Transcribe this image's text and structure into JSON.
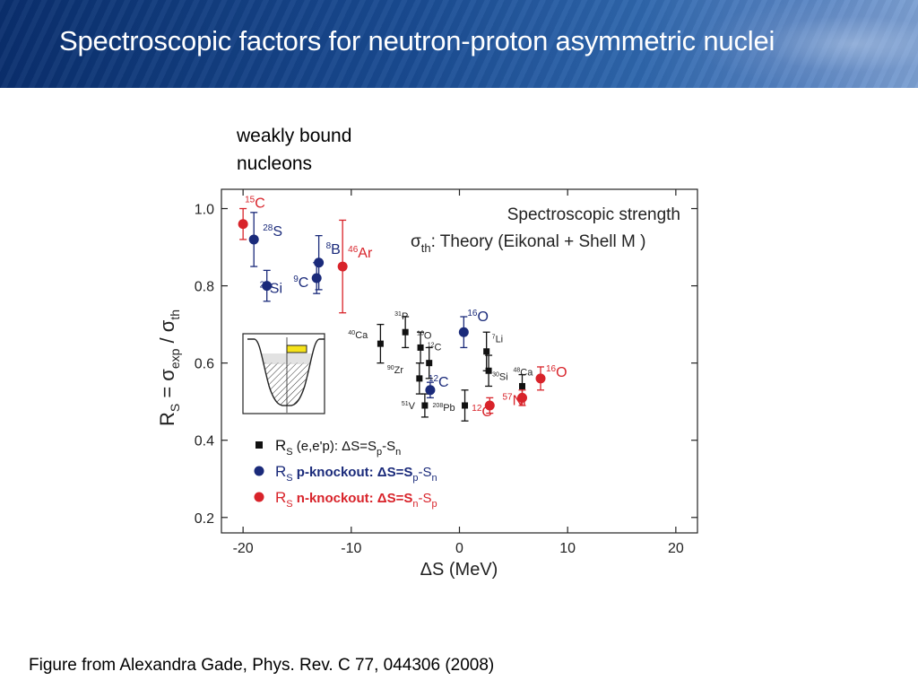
{
  "slide": {
    "title": "Spectroscopic factors for neutron-proton asymmetric nuclei",
    "note_line1": "weakly bound",
    "note_line2": "nucleons",
    "caption": "Figure from Alexandra Gade, Phys. Rev. C 77, 044306 (2008)"
  },
  "colors": {
    "banner": "#1a4c93",
    "square": "#111111",
    "blue": "#1a2a7a",
    "red": "#d8232a"
  },
  "chart_data": {
    "type": "scatter",
    "title": "Spectroscopic strength",
    "subtitle": "σth: Theory (Eikonal + Shell M )",
    "subtitle_parts": {
      "sigma": "σ",
      "sub": "th",
      "rest": ": Theory (Eikonal + Shell M )"
    },
    "xlabel": "ΔS (MeV)",
    "ylabel": "RS = σexp / σth",
    "ylabel_parts": {
      "r": "R",
      "r_sub": "S",
      "eq": " = σ",
      "exp_sub": "exp",
      "mid": " / σ",
      "th_sub": "th"
    },
    "xlim": [
      -22,
      22
    ],
    "ylim": [
      0.16,
      1.05
    ],
    "xticks": [
      -20,
      -10,
      0,
      10,
      20
    ],
    "yticks": [
      0.2,
      0.4,
      0.6,
      0.8,
      1.0
    ],
    "xtick_labels": [
      "-20",
      "-10",
      "0",
      "10",
      "20"
    ],
    "ytick_labels": [
      "0.2",
      "0.4",
      "0.6",
      "0.8",
      "1.0"
    ],
    "grid": false,
    "legend_position": "lower-left",
    "series": [
      {
        "name": "RS (e,e'p): ΔS=Sp-Sn",
        "legend": {
          "r": "R",
          "r_sub": "S",
          "text": " (e,e'p): ΔS=S",
          "s1": "p",
          "mid": "-S",
          "s2": "n"
        },
        "marker": "square",
        "color": "#111111",
        "points": [
          {
            "x": -7.3,
            "y": 0.65,
            "err": 0.05,
            "nuc": {
              "mass": "40",
              "sym": "Ca"
            }
          },
          {
            "x": -5.0,
            "y": 0.68,
            "err": 0.04,
            "nuc": {
              "mass": "31",
              "sym": "P"
            }
          },
          {
            "x": -3.6,
            "y": 0.64,
            "err": 0.04,
            "nuc": {
              "mass": "16",
              "sym": "O"
            }
          },
          {
            "x": -2.8,
            "y": 0.6,
            "err": 0.04,
            "nuc": {
              "mass": "12",
              "sym": "C"
            }
          },
          {
            "x": -3.7,
            "y": 0.56,
            "err": 0.04,
            "nuc": {
              "mass": "90",
              "sym": "Zr"
            }
          },
          {
            "x": -3.2,
            "y": 0.49,
            "err": 0.03,
            "nuc": {
              "mass": "51",
              "sym": "V"
            }
          },
          {
            "x": 0.5,
            "y": 0.49,
            "err": 0.04,
            "nuc": {
              "mass": "208",
              "sym": "Pb"
            }
          },
          {
            "x": 2.5,
            "y": 0.63,
            "err": 0.05,
            "nuc": {
              "mass": "7",
              "sym": "Li"
            }
          },
          {
            "x": 2.7,
            "y": 0.58,
            "err": 0.04,
            "nuc": {
              "mass": "30",
              "sym": "Si"
            }
          },
          {
            "x": 5.8,
            "y": 0.54,
            "err": 0.03,
            "nuc": {
              "mass": "48",
              "sym": "Ca"
            }
          }
        ]
      },
      {
        "name": "RS p-knockout: ΔS=Sp-Sn",
        "legend": {
          "r": "R",
          "r_sub": "S",
          "text": " p-knockout: ΔS=S",
          "s1": "p",
          "mid": "-S",
          "s2": "n"
        },
        "marker": "circle",
        "color": "#1a2a7a",
        "points": [
          {
            "x": -19.0,
            "y": 0.92,
            "err": 0.07,
            "nuc": {
              "mass": "28",
              "sym": "S"
            }
          },
          {
            "x": -17.8,
            "y": 0.8,
            "err": 0.04,
            "nuc": {
              "mass": "24",
              "sym": "Si"
            }
          },
          {
            "x": -13.0,
            "y": 0.86,
            "err": 0.07,
            "nuc": {
              "mass": "8",
              "sym": "B"
            }
          },
          {
            "x": -13.2,
            "y": 0.82,
            "err": 0.04,
            "nuc": {
              "mass": "9",
              "sym": "C"
            }
          },
          {
            "x": 0.4,
            "y": 0.68,
            "err": 0.04,
            "nuc": {
              "mass": "16",
              "sym": "O"
            }
          },
          {
            "x": -2.7,
            "y": 0.53,
            "err": 0.02,
            "nuc": {
              "mass": "12",
              "sym": "C"
            }
          }
        ]
      },
      {
        "name": "RS n-knockout: ΔS=Sn-Sp",
        "legend": {
          "r": "R",
          "r_sub": "S",
          "text": " n-knockout: ΔS=S",
          "s1": "n",
          "mid": "-S",
          "s2": "p"
        },
        "marker": "circle",
        "color": "#d8232a",
        "points": [
          {
            "x": -20.0,
            "y": 0.96,
            "err": 0.04,
            "nuc": {
              "mass": "15",
              "sym": "C"
            }
          },
          {
            "x": -10.8,
            "y": 0.85,
            "err": 0.12,
            "nuc": {
              "mass": "46",
              "sym": "Ar"
            }
          },
          {
            "x": 2.8,
            "y": 0.49,
            "err": 0.02,
            "nuc": {
              "mass": "12",
              "sym": "C"
            }
          },
          {
            "x": 5.8,
            "y": 0.51,
            "err": 0.02,
            "nuc": {
              "mass": "57",
              "sym": "Ni"
            }
          },
          {
            "x": 7.5,
            "y": 0.56,
            "err": 0.03,
            "nuc": {
              "mass": "16",
              "sym": "O"
            }
          }
        ]
      }
    ]
  }
}
